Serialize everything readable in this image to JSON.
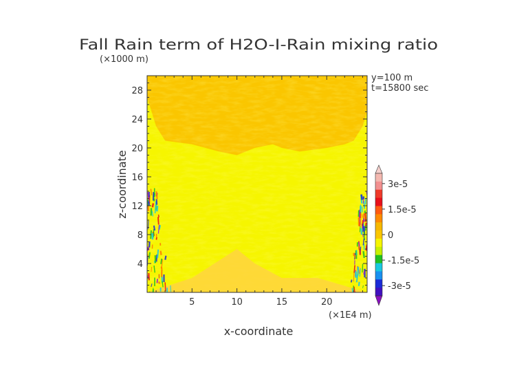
{
  "chart_data": {
    "type": "heatmap",
    "title": "Fall Rain term of H2O-I-Rain mixing ratio",
    "xlabel": "x-coordinate",
    "ylabel": "z-coordinate",
    "x_unit": "(×1E4 m)",
    "y_unit": "(×1000 m)",
    "annotations": [
      "y=100 m",
      "t=15800 sec"
    ],
    "x_ticks": [
      5,
      10,
      15,
      20
    ],
    "y_ticks": [
      4,
      8,
      12,
      16,
      20,
      24,
      28
    ],
    "xlim": [
      0,
      24.5
    ],
    "ylim": [
      0,
      30
    ],
    "colorbar": {
      "tick_labels": [
        "3e-5",
        "1.5e-5",
        "0",
        "-1.5e-5",
        "-3e-5"
      ],
      "tick_values": [
        3e-05,
        1.5e-05,
        0,
        -1.5e-05,
        -3e-05
      ],
      "range": [
        -3.6e-05,
        3.6e-05
      ]
    },
    "field_regions": {
      "background_value": 0,
      "weak_negative_band_top": [
        [
          0,
          27
        ],
        [
          1,
          23
        ],
        [
          2,
          21
        ],
        [
          5,
          20.5
        ],
        [
          8,
          19.5
        ],
        [
          10,
          19
        ],
        [
          12,
          20
        ],
        [
          14,
          20.5
        ],
        [
          15,
          20
        ],
        [
          17,
          19.5
        ],
        [
          20,
          20
        ],
        [
          22,
          20.5
        ],
        [
          23,
          21
        ],
        [
          24,
          23
        ],
        [
          24.5,
          25
        ]
      ],
      "ground_layer_top": [
        [
          0,
          0
        ],
        [
          5,
          2
        ],
        [
          10,
          6
        ],
        [
          12,
          4
        ],
        [
          15,
          2
        ],
        [
          19,
          2
        ],
        [
          24.5,
          0
        ]
      ],
      "strong_columns": [
        {
          "x_range": [
            0,
            3
          ],
          "z_range": [
            0,
            14.5
          ],
          "amplitude": 3e-05
        },
        {
          "x_range": [
            22.5,
            24.5
          ],
          "z_range": [
            0,
            14
          ],
          "amplitude": 3e-05
        }
      ]
    }
  },
  "colors": {
    "background_field": "#fac600",
    "weak_negative": "#f6f500",
    "ground_layer": "#ffd340",
    "positive_strong": "#e8101a",
    "negative_strong": "#1a2bd8"
  }
}
